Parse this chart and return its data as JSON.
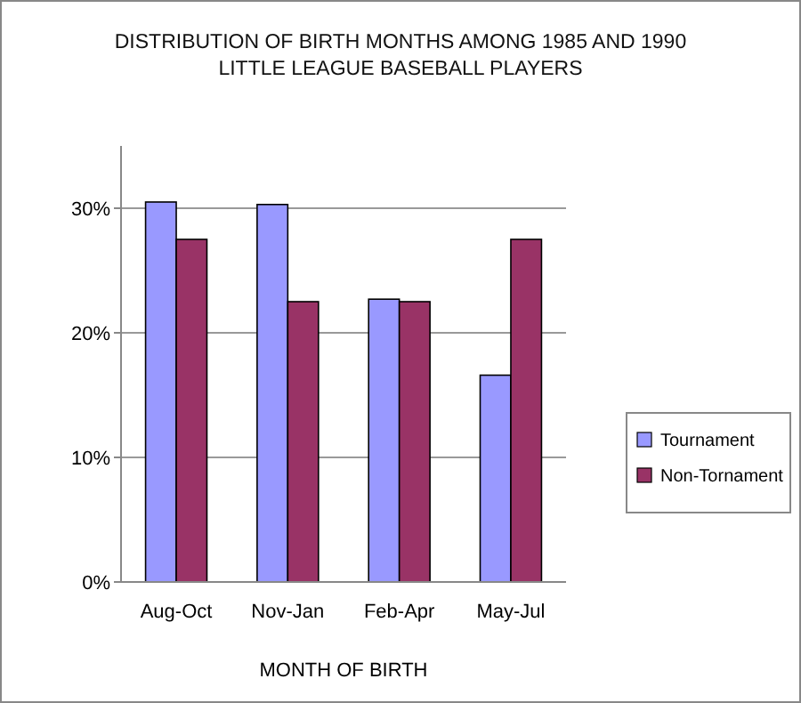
{
  "chart_data": {
    "type": "bar",
    "title": "DISTRIBUTION  OF BIRTH MONTHS AMONG 1985 AND 1990\nLITTLE  LEAGUE BASEBALL PLAYERS",
    "xlabel": "MONTH OF BIRTH",
    "categories": [
      "Aug-Oct",
      "Nov-Jan",
      "Feb-Apr",
      "May-Jul"
    ],
    "series": [
      {
        "name": "Tournament",
        "color": "#9999ff",
        "values": [
          30.5,
          30.3,
          22.7,
          16.6
        ]
      },
      {
        "name": "Non-Tornament",
        "color": "#993366",
        "values": [
          27.5,
          22.5,
          22.5,
          27.5
        ]
      }
    ],
    "ylim": [
      0,
      35
    ],
    "yticks": [
      {
        "value": 0,
        "label": "0%"
      },
      {
        "value": 10,
        "label": "10%"
      },
      {
        "value": 20,
        "label": "20%"
      },
      {
        "value": 30,
        "label": "30%"
      }
    ],
    "grid": "y",
    "legend": "right"
  }
}
